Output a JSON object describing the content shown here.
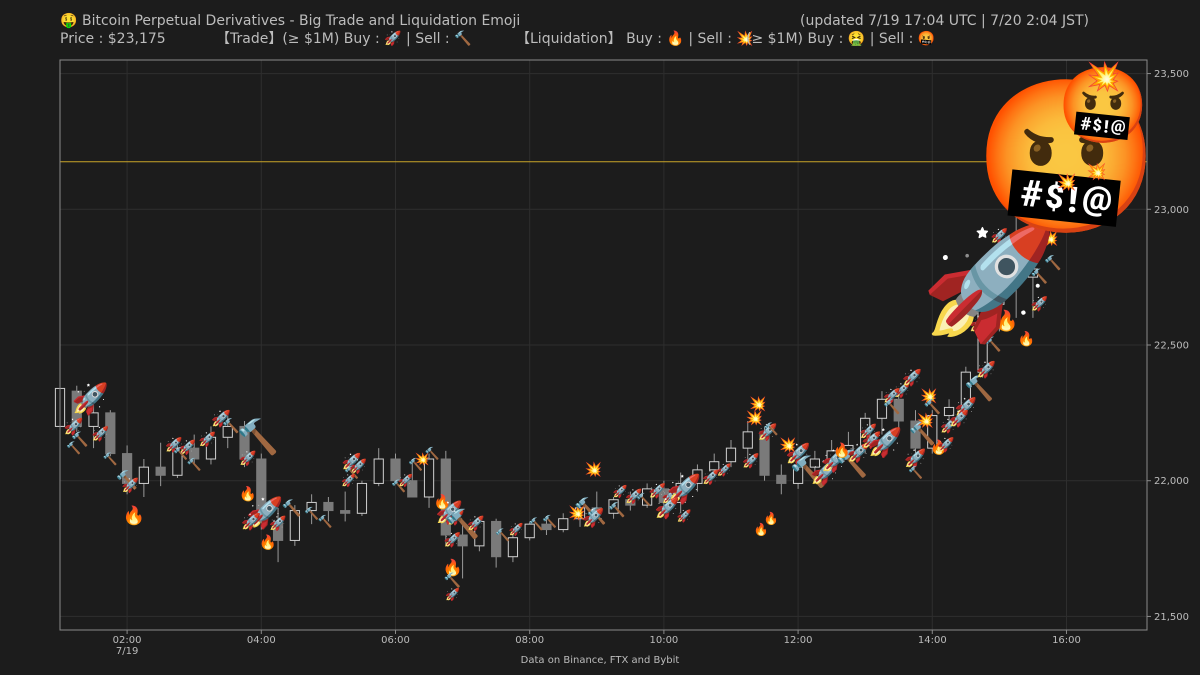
{
  "header": {
    "title_icon": "🤑",
    "title": "Bitcoin Perpetual Derivatives - Big Trade and Liquidation Emoji",
    "updated": "(updated 7/19 17:04 UTC  |  7/20 2:04 JST)",
    "price": "Price : $23,175",
    "trade_label": "【Trade】(≥ $1M)  Buy : 🚀 | Sell : 🔨",
    "liq_label": "【Liquidation】  Buy : 🔥 | Sell : 💥",
    "liq_big_label": "(≥ $1M)  Buy : 🤮 | Sell : 🤬"
  },
  "footer": {
    "source": "Data on Binance, FTX and Bybit"
  },
  "chart_data": {
    "type": "candlestick",
    "title": "Bitcoin Perpetual Derivatives - Big Trade and Liquidation Emoji",
    "x_range_hours": [
      1.0,
      17.2
    ],
    "ylim": [
      21450,
      23550
    ],
    "y_ticks": [
      21500,
      22000,
      22500,
      23000,
      23500
    ],
    "y_tick_labels": [
      "21,500",
      "22,000",
      "22,500",
      "23,000",
      "23,500"
    ],
    "x_ticks": [
      2,
      4,
      6,
      8,
      10,
      12,
      14,
      16
    ],
    "x_tick_labels": [
      "02:00",
      "04:00",
      "06:00",
      "08:00",
      "10:00",
      "12:00",
      "14:00",
      "16:00"
    ],
    "x_sublabel": "7/19",
    "current_price": 23175,
    "current_price_color": "#c8a428",
    "up_color": "#d0d0d0",
    "down_color": "#7a7a7a",
    "grid": true,
    "candles": [
      {
        "t": 1.0,
        "o": 22200,
        "h": 22350,
        "l": 22180,
        "c": 22340
      },
      {
        "t": 1.25,
        "o": 22330,
        "h": 22350,
        "l": 22180,
        "c": 22200
      },
      {
        "t": 1.5,
        "o": 22200,
        "h": 22280,
        "l": 22120,
        "c": 22250
      },
      {
        "t": 1.75,
        "o": 22250,
        "h": 22260,
        "l": 22090,
        "c": 22100
      },
      {
        "t": 2.0,
        "o": 22100,
        "h": 22130,
        "l": 21950,
        "c": 21990
      },
      {
        "t": 2.25,
        "o": 21990,
        "h": 22080,
        "l": 21940,
        "c": 22050
      },
      {
        "t": 2.5,
        "o": 22050,
        "h": 22140,
        "l": 21980,
        "c": 22020
      },
      {
        "t": 2.75,
        "o": 22020,
        "h": 22150,
        "l": 22010,
        "c": 22120
      },
      {
        "t": 3.0,
        "o": 22120,
        "h": 22170,
        "l": 22060,
        "c": 22080
      },
      {
        "t": 3.25,
        "o": 22080,
        "h": 22200,
        "l": 22060,
        "c": 22160
      },
      {
        "t": 3.5,
        "o": 22160,
        "h": 22240,
        "l": 22120,
        "c": 22200
      },
      {
        "t": 3.75,
        "o": 22200,
        "h": 22220,
        "l": 22050,
        "c": 22080
      },
      {
        "t": 4.0,
        "o": 22080,
        "h": 22100,
        "l": 21820,
        "c": 21850
      },
      {
        "t": 4.25,
        "o": 21850,
        "h": 21900,
        "l": 21700,
        "c": 21780
      },
      {
        "t": 4.5,
        "o": 21780,
        "h": 21910,
        "l": 21760,
        "c": 21890
      },
      {
        "t": 4.75,
        "o": 21890,
        "h": 21950,
        "l": 21840,
        "c": 21920
      },
      {
        "t": 5.0,
        "o": 21920,
        "h": 21940,
        "l": 21850,
        "c": 21890
      },
      {
        "t": 5.25,
        "o": 21890,
        "h": 21960,
        "l": 21850,
        "c": 21880
      },
      {
        "t": 5.5,
        "o": 21880,
        "h": 22000,
        "l": 21870,
        "c": 21990
      },
      {
        "t": 5.75,
        "o": 21990,
        "h": 22120,
        "l": 21980,
        "c": 22080
      },
      {
        "t": 6.0,
        "o": 22080,
        "h": 22100,
        "l": 21990,
        "c": 22000
      },
      {
        "t": 6.25,
        "o": 22000,
        "h": 22080,
        "l": 21950,
        "c": 21940
      },
      {
        "t": 6.5,
        "o": 21940,
        "h": 22100,
        "l": 21900,
        "c": 22080
      },
      {
        "t": 6.75,
        "o": 22080,
        "h": 22110,
        "l": 21760,
        "c": 21800
      },
      {
        "t": 7.0,
        "o": 21800,
        "h": 21850,
        "l": 21640,
        "c": 21760
      },
      {
        "t": 7.25,
        "o": 21760,
        "h": 21860,
        "l": 21740,
        "c": 21850
      },
      {
        "t": 7.5,
        "o": 21850,
        "h": 21860,
        "l": 21680,
        "c": 21720
      },
      {
        "t": 7.75,
        "o": 21720,
        "h": 21810,
        "l": 21700,
        "c": 21790
      },
      {
        "t": 8.0,
        "o": 21790,
        "h": 21850,
        "l": 21780,
        "c": 21840
      },
      {
        "t": 8.25,
        "o": 21840,
        "h": 21870,
        "l": 21800,
        "c": 21820
      },
      {
        "t": 8.5,
        "o": 21820,
        "h": 21880,
        "l": 21810,
        "c": 21860
      },
      {
        "t": 8.75,
        "o": 21860,
        "h": 21920,
        "l": 21830,
        "c": 21900
      },
      {
        "t": 9.0,
        "o": 21900,
        "h": 21960,
        "l": 21860,
        "c": 21880
      },
      {
        "t": 9.25,
        "o": 21880,
        "h": 21940,
        "l": 21860,
        "c": 21930
      },
      {
        "t": 9.5,
        "o": 21930,
        "h": 21960,
        "l": 21890,
        "c": 21910
      },
      {
        "t": 9.75,
        "o": 21910,
        "h": 21990,
        "l": 21900,
        "c": 21970
      },
      {
        "t": 10.0,
        "o": 21970,
        "h": 22000,
        "l": 21900,
        "c": 21920
      },
      {
        "t": 10.25,
        "o": 21920,
        "h": 22030,
        "l": 21880,
        "c": 21990
      },
      {
        "t": 10.5,
        "o": 21990,
        "h": 22060,
        "l": 21960,
        "c": 22040
      },
      {
        "t": 10.75,
        "o": 22040,
        "h": 22100,
        "l": 22010,
        "c": 22070
      },
      {
        "t": 11.0,
        "o": 22070,
        "h": 22150,
        "l": 22050,
        "c": 22120
      },
      {
        "t": 11.25,
        "o": 22120,
        "h": 22220,
        "l": 22060,
        "c": 22180
      },
      {
        "t": 11.5,
        "o": 22180,
        "h": 22200,
        "l": 22000,
        "c": 22020
      },
      {
        "t": 11.75,
        "o": 22020,
        "h": 22060,
        "l": 21950,
        "c": 21990
      },
      {
        "t": 12.0,
        "o": 21990,
        "h": 22090,
        "l": 21970,
        "c": 22050
      },
      {
        "t": 12.25,
        "o": 22050,
        "h": 22110,
        "l": 22010,
        "c": 22080
      },
      {
        "t": 12.5,
        "o": 22080,
        "h": 22150,
        "l": 22040,
        "c": 22110
      },
      {
        "t": 12.75,
        "o": 22110,
        "h": 22180,
        "l": 22080,
        "c": 22130
      },
      {
        "t": 13.0,
        "o": 22130,
        "h": 22250,
        "l": 22100,
        "c": 22230
      },
      {
        "t": 13.25,
        "o": 22230,
        "h": 22330,
        "l": 22170,
        "c": 22300
      },
      {
        "t": 13.5,
        "o": 22300,
        "h": 22340,
        "l": 22180,
        "c": 22220
      },
      {
        "t": 13.75,
        "o": 22220,
        "h": 22260,
        "l": 22060,
        "c": 22120
      },
      {
        "t": 14.0,
        "o": 22120,
        "h": 22260,
        "l": 22100,
        "c": 22240
      },
      {
        "t": 14.25,
        "o": 22240,
        "h": 22300,
        "l": 22180,
        "c": 22270
      },
      {
        "t": 14.5,
        "o": 22270,
        "h": 22420,
        "l": 22250,
        "c": 22400
      },
      {
        "t": 14.75,
        "o": 22400,
        "h": 22680,
        "l": 22380,
        "c": 22650
      },
      {
        "t": 15.0,
        "o": 22650,
        "h": 22900,
        "l": 22550,
        "c": 22850
      },
      {
        "t": 15.25,
        "o": 22850,
        "h": 23020,
        "l": 22600,
        "c": 22750
      },
      {
        "t": 15.5,
        "o": 22750,
        "h": 22830,
        "l": 22600,
        "c": 22780
      }
    ],
    "markers": [
      {
        "type": "rocket",
        "t": 1.45,
        "p": 22300,
        "size": 30
      },
      {
        "type": "rocket",
        "t": 1.2,
        "p": 22200,
        "size": 16
      },
      {
        "type": "hammer",
        "t": 1.3,
        "p": 22150,
        "size": 14
      },
      {
        "type": "rocket",
        "t": 1.6,
        "p": 22170,
        "size": 14
      },
      {
        "type": "hammer",
        "t": 1.2,
        "p": 22120,
        "size": 12
      },
      {
        "type": "hammer",
        "t": 1.75,
        "p": 22080,
        "size": 12
      },
      {
        "type": "hammer",
        "t": 2.0,
        "p": 22000,
        "size": 18
      },
      {
        "type": "rocket",
        "t": 2.05,
        "p": 21980,
        "size": 14
      },
      {
        "type": "fire",
        "t": 2.1,
        "p": 21870,
        "size": 18
      },
      {
        "type": "rocket",
        "t": 2.7,
        "p": 22130,
        "size": 14
      },
      {
        "type": "rocket",
        "t": 2.9,
        "p": 22120,
        "size": 14
      },
      {
        "type": "hammer",
        "t": 2.8,
        "p": 22100,
        "size": 12
      },
      {
        "type": "hammer",
        "t": 3.0,
        "p": 22060,
        "size": 12
      },
      {
        "type": "rocket",
        "t": 3.2,
        "p": 22150,
        "size": 14
      },
      {
        "type": "rocket",
        "t": 3.4,
        "p": 22230,
        "size": 16
      },
      {
        "type": "hammer",
        "t": 3.55,
        "p": 22200,
        "size": 14
      },
      {
        "type": "hammer",
        "t": 3.95,
        "p": 22160,
        "size": 34
      },
      {
        "type": "rocket",
        "t": 3.8,
        "p": 22080,
        "size": 14
      },
      {
        "type": "fire",
        "t": 3.8,
        "p": 21950,
        "size": 14
      },
      {
        "type": "rocket",
        "t": 4.05,
        "p": 21880,
        "size": 30
      },
      {
        "type": "rocket",
        "t": 3.85,
        "p": 21850,
        "size": 16
      },
      {
        "type": "fire",
        "t": 4.1,
        "p": 21770,
        "size": 14
      },
      {
        "type": "rocket",
        "t": 4.25,
        "p": 21840,
        "size": 14
      },
      {
        "type": "hammer",
        "t": 4.45,
        "p": 21900,
        "size": 16
      },
      {
        "type": "hammer",
        "t": 4.75,
        "p": 21880,
        "size": 12
      },
      {
        "type": "hammer",
        "t": 4.95,
        "p": 21850,
        "size": 12
      },
      {
        "type": "rocket",
        "t": 5.35,
        "p": 22070,
        "size": 16
      },
      {
        "type": "rocket",
        "t": 5.45,
        "p": 22050,
        "size": 14
      },
      {
        "type": "hammer",
        "t": 5.35,
        "p": 22030,
        "size": 12
      },
      {
        "type": "rocket",
        "t": 5.3,
        "p": 22000,
        "size": 12
      },
      {
        "type": "hammer",
        "t": 6.05,
        "p": 21980,
        "size": 12
      },
      {
        "type": "rocket",
        "t": 6.15,
        "p": 22000,
        "size": 12
      },
      {
        "type": "hammer",
        "t": 6.3,
        "p": 22060,
        "size": 12
      },
      {
        "type": "boom",
        "t": 6.4,
        "p": 22080,
        "size": 12
      },
      {
        "type": "hammer",
        "t": 6.55,
        "p": 22100,
        "size": 12
      },
      {
        "type": "fire",
        "t": 6.7,
        "p": 21920,
        "size": 14
      },
      {
        "type": "rocket",
        "t": 6.8,
        "p": 21880,
        "size": 22
      },
      {
        "type": "rocket",
        "t": 6.9,
        "p": 21860,
        "size": 14
      },
      {
        "type": "hammer",
        "t": 7.0,
        "p": 21840,
        "size": 28
      },
      {
        "type": "rocket",
        "t": 7.2,
        "p": 21840,
        "size": 14
      },
      {
        "type": "rocket",
        "t": 6.85,
        "p": 21780,
        "size": 14
      },
      {
        "type": "fire",
        "t": 6.85,
        "p": 21680,
        "size": 16
      },
      {
        "type": "hammer",
        "t": 6.85,
        "p": 21630,
        "size": 14
      },
      {
        "type": "rocket",
        "t": 6.85,
        "p": 21580,
        "size": 12
      },
      {
        "type": "hammer",
        "t": 7.6,
        "p": 21800,
        "size": 12
      },
      {
        "type": "rocket",
        "t": 7.8,
        "p": 21820,
        "size": 12
      },
      {
        "type": "hammer",
        "t": 8.1,
        "p": 21840,
        "size": 12
      },
      {
        "type": "hammer",
        "t": 8.3,
        "p": 21850,
        "size": 12
      },
      {
        "type": "boom",
        "t": 8.7,
        "p": 21880,
        "size": 14
      },
      {
        "type": "boom",
        "t": 8.95,
        "p": 22040,
        "size": 14
      },
      {
        "type": "hammer",
        "t": 8.85,
        "p": 21900,
        "size": 20
      },
      {
        "type": "hammer",
        "t": 9.0,
        "p": 21870,
        "size": 16
      },
      {
        "type": "rocket",
        "t": 8.95,
        "p": 21860,
        "size": 18
      },
      {
        "type": "hammer",
        "t": 9.3,
        "p": 21890,
        "size": 14
      },
      {
        "type": "rocket",
        "t": 9.35,
        "p": 21960,
        "size": 12
      },
      {
        "type": "rocket",
        "t": 9.55,
        "p": 21940,
        "size": 14
      },
      {
        "type": "hammer",
        "t": 9.7,
        "p": 21930,
        "size": 12
      },
      {
        "type": "rocket",
        "t": 9.9,
        "p": 21960,
        "size": 14
      },
      {
        "type": "rocket",
        "t": 10.1,
        "p": 21940,
        "size": 14
      },
      {
        "type": "rocket",
        "t": 10.3,
        "p": 21970,
        "size": 28
      },
      {
        "type": "rocket",
        "t": 10.05,
        "p": 21900,
        "size": 20
      },
      {
        "type": "rocket",
        "t": 10.3,
        "p": 21870,
        "size": 12
      },
      {
        "type": "rocket",
        "t": 10.7,
        "p": 22010,
        "size": 14
      },
      {
        "type": "rocket",
        "t": 10.9,
        "p": 22040,
        "size": 12
      },
      {
        "type": "rocket",
        "t": 11.3,
        "p": 22070,
        "size": 14
      },
      {
        "type": "boom",
        "t": 11.4,
        "p": 22280,
        "size": 14
      },
      {
        "type": "boom",
        "t": 11.35,
        "p": 22230,
        "size": 14
      },
      {
        "type": "rocket",
        "t": 11.55,
        "p": 22180,
        "size": 16
      },
      {
        "type": "hammer",
        "t": 11.6,
        "p": 22190,
        "size": 12
      },
      {
        "type": "fire",
        "t": 11.45,
        "p": 21820,
        "size": 12
      },
      {
        "type": "fire",
        "t": 11.6,
        "p": 21860,
        "size": 12
      },
      {
        "type": "boom",
        "t": 11.85,
        "p": 22130,
        "size": 14
      },
      {
        "type": "rocket",
        "t": 12.0,
        "p": 22100,
        "size": 20
      },
      {
        "type": "hammer",
        "t": 12.15,
        "p": 22030,
        "size": 30
      },
      {
        "type": "rocket",
        "t": 12.4,
        "p": 22030,
        "size": 24
      },
      {
        "type": "rocket",
        "t": 12.55,
        "p": 22070,
        "size": 22
      },
      {
        "type": "hammer",
        "t": 12.8,
        "p": 22060,
        "size": 26
      },
      {
        "type": "rocket",
        "t": 12.9,
        "p": 22100,
        "size": 18
      },
      {
        "type": "fire",
        "t": 12.65,
        "p": 22110,
        "size": 14
      },
      {
        "type": "rocket",
        "t": 13.1,
        "p": 22150,
        "size": 16
      },
      {
        "type": "rocket",
        "t": 13.3,
        "p": 22140,
        "size": 28
      },
      {
        "type": "rocket",
        "t": 13.05,
        "p": 22180,
        "size": 14
      },
      {
        "type": "rocket",
        "t": 13.55,
        "p": 22330,
        "size": 14
      },
      {
        "type": "rocket",
        "t": 13.4,
        "p": 22310,
        "size": 14
      },
      {
        "type": "hammer",
        "t": 13.4,
        "p": 22270,
        "size": 14
      },
      {
        "type": "rocket",
        "t": 13.7,
        "p": 22380,
        "size": 16
      },
      {
        "type": "hammer",
        "t": 13.85,
        "p": 22170,
        "size": 22
      },
      {
        "type": "rocket",
        "t": 13.75,
        "p": 22080,
        "size": 18
      },
      {
        "type": "hammer",
        "t": 13.75,
        "p": 22030,
        "size": 12
      },
      {
        "type": "boom",
        "t": 13.95,
        "p": 22310,
        "size": 14
      },
      {
        "type": "hammer",
        "t": 14.0,
        "p": 22270,
        "size": 14
      },
      {
        "type": "boom",
        "t": 13.9,
        "p": 22220,
        "size": 14
      },
      {
        "type": "fire",
        "t": 14.1,
        "p": 22120,
        "size": 14
      },
      {
        "type": "rocket",
        "t": 14.25,
        "p": 22200,
        "size": 14
      },
      {
        "type": "rocket",
        "t": 14.2,
        "p": 22130,
        "size": 14
      },
      {
        "type": "rocket",
        "t": 14.5,
        "p": 22270,
        "size": 18
      },
      {
        "type": "rocket",
        "t": 14.4,
        "p": 22230,
        "size": 16
      },
      {
        "type": "hammer",
        "t": 14.7,
        "p": 22340,
        "size": 24
      },
      {
        "type": "rocket",
        "t": 14.8,
        "p": 22410,
        "size": 16
      },
      {
        "type": "rocket",
        "t": 14.7,
        "p": 22580,
        "size": 16
      },
      {
        "type": "hammer",
        "t": 14.9,
        "p": 22500,
        "size": 14
      },
      {
        "type": "fire",
        "t": 15.1,
        "p": 22590,
        "size": 20
      },
      {
        "type": "fire",
        "t": 15.4,
        "p": 22520,
        "size": 14
      },
      {
        "type": "boom",
        "t": 15.0,
        "p": 22700,
        "size": 14
      },
      {
        "type": "rocket",
        "t": 15.15,
        "p": 22790,
        "size": 16
      },
      {
        "type": "hammer",
        "t": 15.3,
        "p": 22820,
        "size": 16
      },
      {
        "type": "boom",
        "t": 15.5,
        "p": 22850,
        "size": 14
      },
      {
        "type": "hammer",
        "t": 15.6,
        "p": 22750,
        "size": 14
      },
      {
        "type": "rocket",
        "t": 15.0,
        "p": 22900,
        "size": 14
      },
      {
        "type": "boom",
        "t": 15.75,
        "p": 22890,
        "size": 14
      },
      {
        "type": "hammer",
        "t": 15.8,
        "p": 22800,
        "size": 14
      },
      {
        "type": "rocket",
        "t": 15.6,
        "p": 22650,
        "size": 14
      },
      {
        "type": "rocket",
        "t": 14.85,
        "p": 22730,
        "size": 110
      },
      {
        "type": "angry",
        "t": 16.0,
        "p": 23190,
        "size": 150
      },
      {
        "type": "angry",
        "t": 16.55,
        "p": 23380,
        "size": 74
      },
      {
        "type": "boom",
        "t": 16.55,
        "p": 23490,
        "size": 28
      },
      {
        "type": "boom",
        "t": 16.0,
        "p": 23100,
        "size": 16
      },
      {
        "type": "boom",
        "t": 16.45,
        "p": 23140,
        "size": 16
      }
    ]
  }
}
